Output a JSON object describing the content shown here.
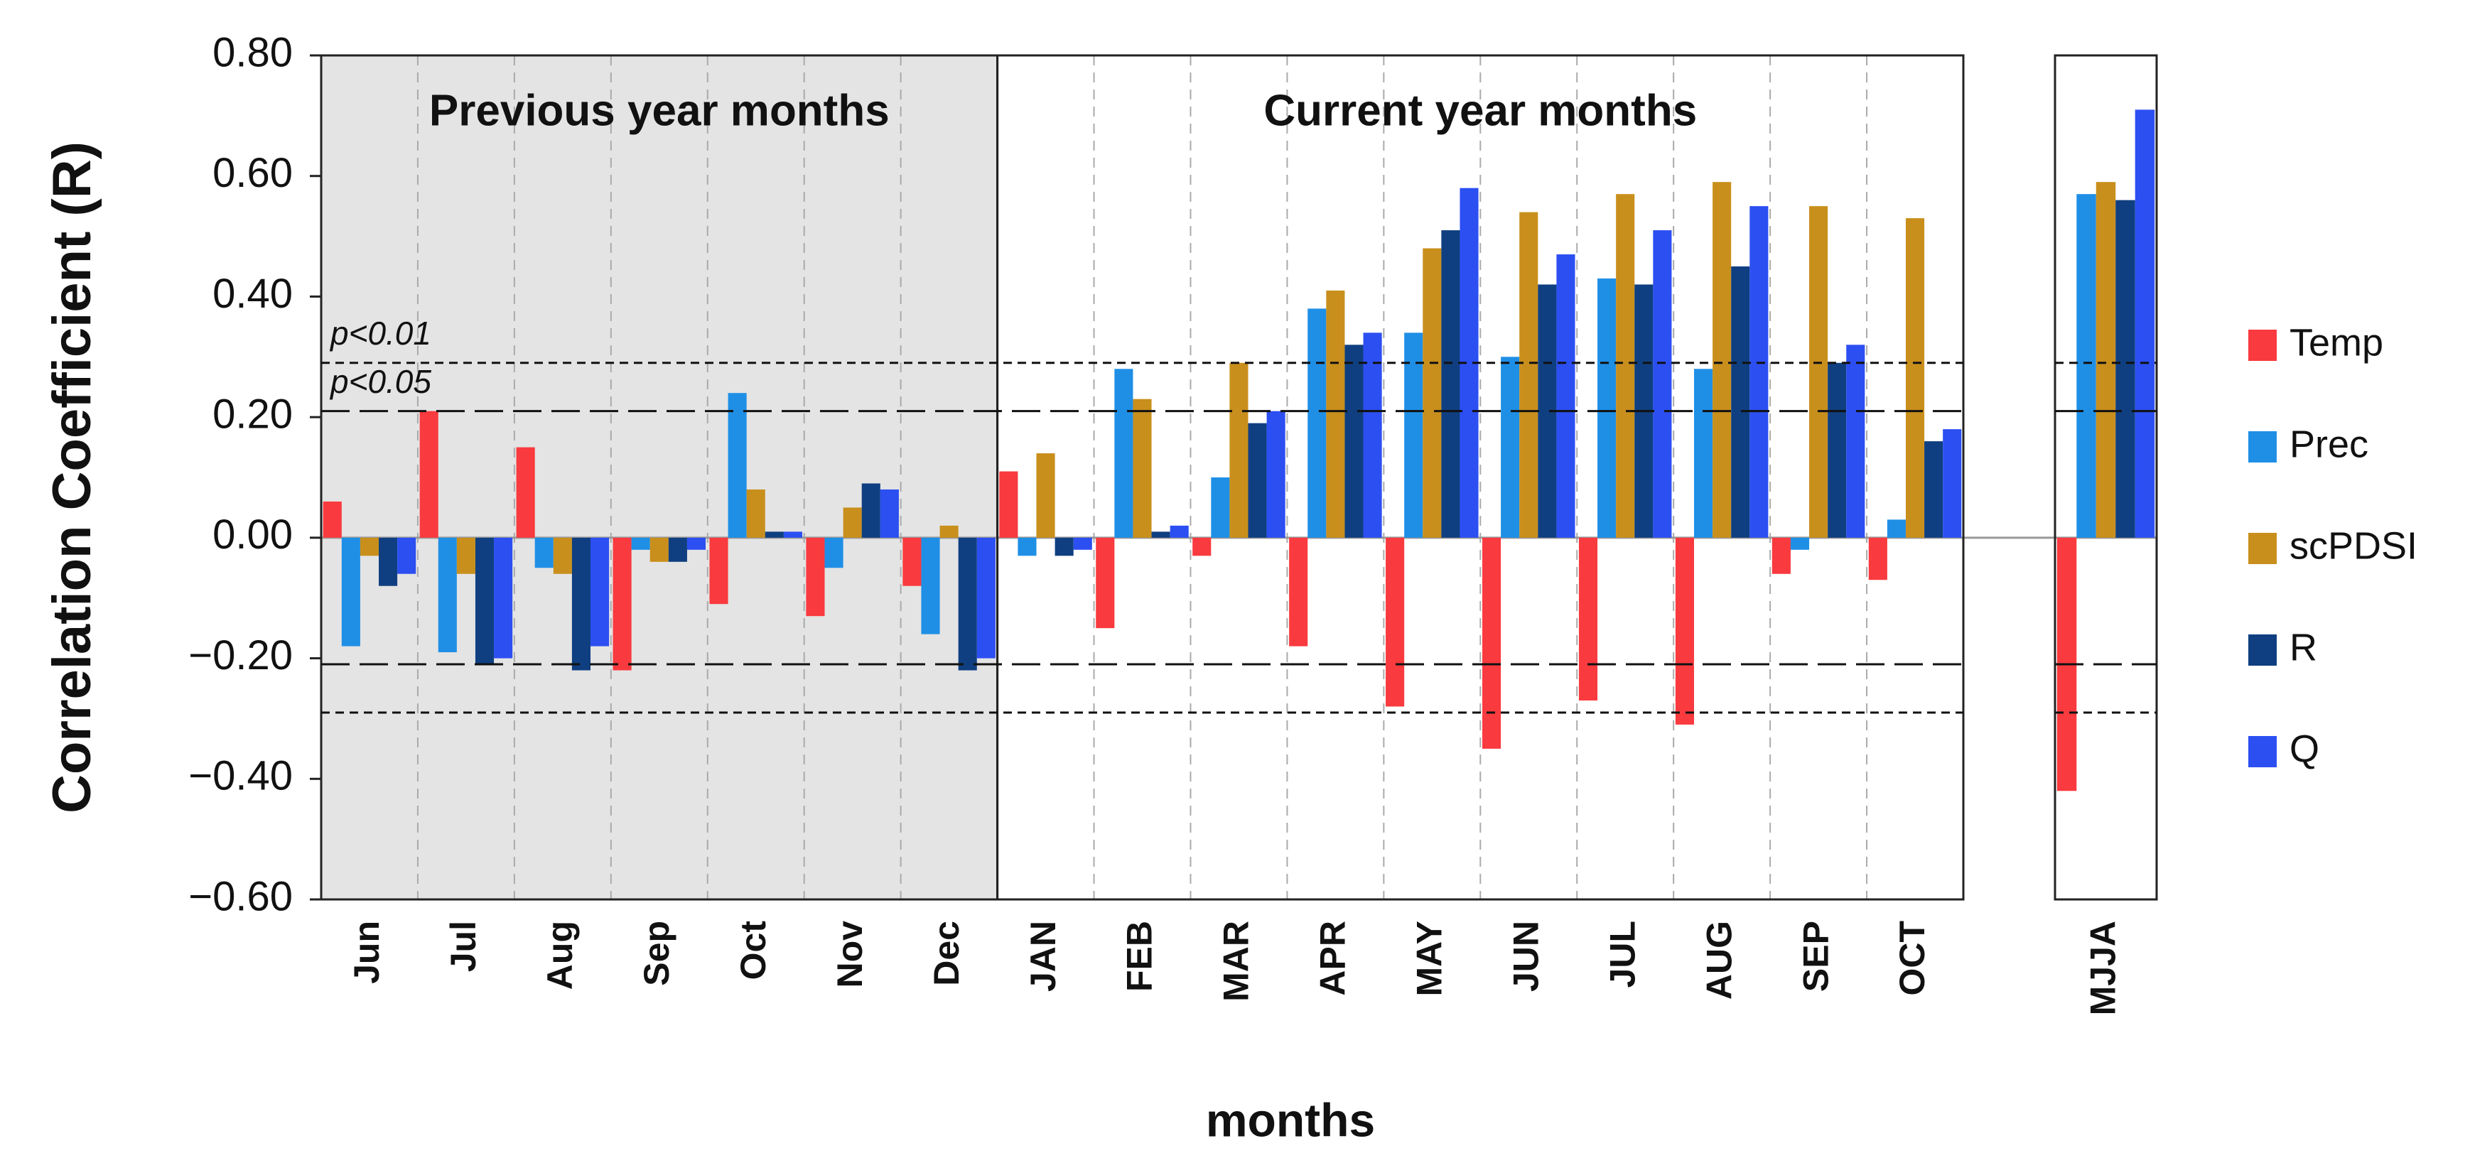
{
  "chart_data": {
    "type": "bar",
    "y_label": "Correlation Coefficient (R)",
    "x_label": "months",
    "categories": [
      "Jun",
      "Jul",
      "Aug",
      "Sep",
      "Oct",
      "Nov",
      "Dec",
      "JAN",
      "FEB",
      "MAR",
      "APR",
      "MAY",
      "JUN",
      "JUL",
      "AUG",
      "SEP",
      "OCT",
      "MJJA"
    ],
    "panels": [
      {
        "title": "Previous year months",
        "from": "Jun",
        "to": "Dec",
        "shaded": true
      },
      {
        "title": "Current year months",
        "from": "JAN",
        "to": "OCT",
        "shaded": false
      },
      {
        "from": "MJJA",
        "to": "MJJA",
        "shaded": false
      }
    ],
    "series": [
      {
        "name": "Temp",
        "color": "#f93a3e",
        "values": [
          0.06,
          0.21,
          0.15,
          -0.22,
          -0.11,
          -0.13,
          -0.08,
          0.11,
          -0.15,
          -0.03,
          -0.18,
          -0.28,
          -0.35,
          -0.27,
          -0.31,
          -0.06,
          -0.07,
          -0.42
        ]
      },
      {
        "name": "Prec",
        "color": "#1f8fe6",
        "values": [
          -0.18,
          -0.19,
          -0.05,
          -0.02,
          0.24,
          -0.05,
          -0.16,
          -0.03,
          0.28,
          0.1,
          0.38,
          0.34,
          0.3,
          0.43,
          0.28,
          -0.02,
          0.03,
          0.57
        ]
      },
      {
        "name": "scPDSI",
        "color": "#c98f1c",
        "values": [
          -0.03,
          -0.06,
          -0.06,
          -0.04,
          0.08,
          0.05,
          0.02,
          0.14,
          0.23,
          0.29,
          0.41,
          0.48,
          0.54,
          0.57,
          0.59,
          0.55,
          0.53,
          0.59
        ]
      },
      {
        "name": "R",
        "color": "#0f3f80",
        "values": [
          -0.08,
          -0.21,
          -0.22,
          -0.04,
          0.01,
          0.09,
          -0.22,
          -0.03,
          0.01,
          0.19,
          0.32,
          0.51,
          0.42,
          0.42,
          0.45,
          0.29,
          0.16,
          0.56
        ]
      },
      {
        "name": "Q",
        "color": "#2c4ff2",
        "values": [
          -0.06,
          -0.2,
          -0.18,
          -0.02,
          0.01,
          0.08,
          -0.2,
          -0.02,
          0.02,
          0.21,
          0.34,
          0.58,
          0.47,
          0.51,
          0.55,
          0.32,
          0.18,
          0.71
        ]
      }
    ],
    "ylim": [
      -0.6,
      0.8
    ],
    "yticks": [
      {
        "value": 0.8,
        "label": "0.80"
      },
      {
        "value": 0.6,
        "label": "0.60"
      },
      {
        "value": 0.4,
        "label": "0.40"
      },
      {
        "value": 0.2,
        "label": "0.20"
      },
      {
        "value": 0,
        "label": "0.00"
      },
      {
        "value": -0.2,
        "label": "−0.20"
      },
      {
        "value": -0.4,
        "label": "−0.40"
      },
      {
        "value": -0.6,
        "label": "−0.60"
      }
    ],
    "significance": [
      {
        "label": "p<0.01",
        "value": 0.29
      },
      {
        "label": "p<0.05",
        "value": 0.21
      }
    ],
    "reference_lines": [
      {
        "value": 0.29,
        "dash": "short"
      },
      {
        "value": 0.21,
        "dash": "long"
      },
      {
        "value": -0.21,
        "dash": "long"
      },
      {
        "value": -0.29,
        "dash": "short"
      }
    ],
    "legend": "right",
    "grid": true
  }
}
